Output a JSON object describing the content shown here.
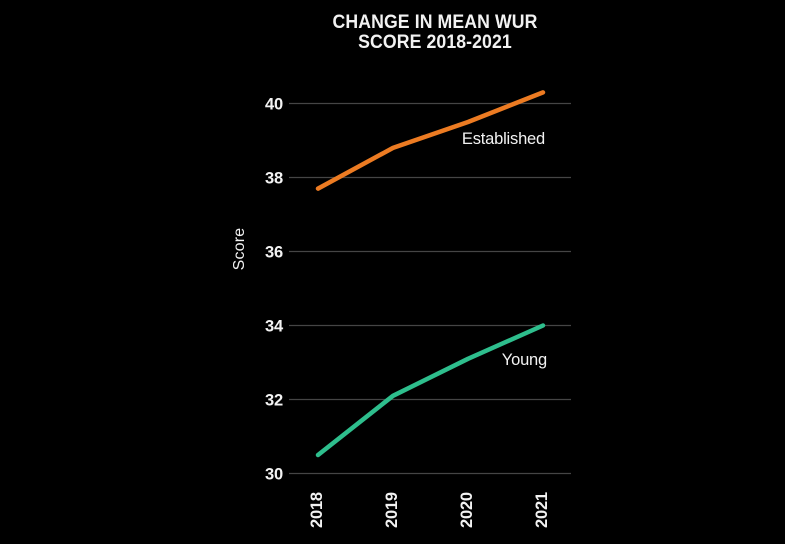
{
  "page": {
    "background": "#000000",
    "text_color": "#F2F2F2"
  },
  "chart_data": {
    "type": "line",
    "title": "CHANGE IN MEAN WUR SCORE 2018-2021",
    "title_lines": [
      "CHANGE IN MEAN WUR",
      "SCORE 2018-2021"
    ],
    "xlabel": "",
    "ylabel": "Score",
    "categories": [
      "2018",
      "2019",
      "2020",
      "2021"
    ],
    "series": [
      {
        "name": "Established",
        "color": "#EC7B22",
        "values": [
          37.7,
          38.8,
          39.5,
          40.3
        ]
      },
      {
        "name": "Young",
        "color": "#2EBE8D",
        "values": [
          30.5,
          32.1,
          33.1,
          34.0
        ]
      }
    ],
    "ylim": [
      30,
      40.5
    ],
    "yticks": [
      30,
      32,
      34,
      36,
      38,
      40
    ],
    "grid": "horizontal",
    "gridline_color": "#454545",
    "legend_position": "inline-labels",
    "background": "#000000"
  }
}
